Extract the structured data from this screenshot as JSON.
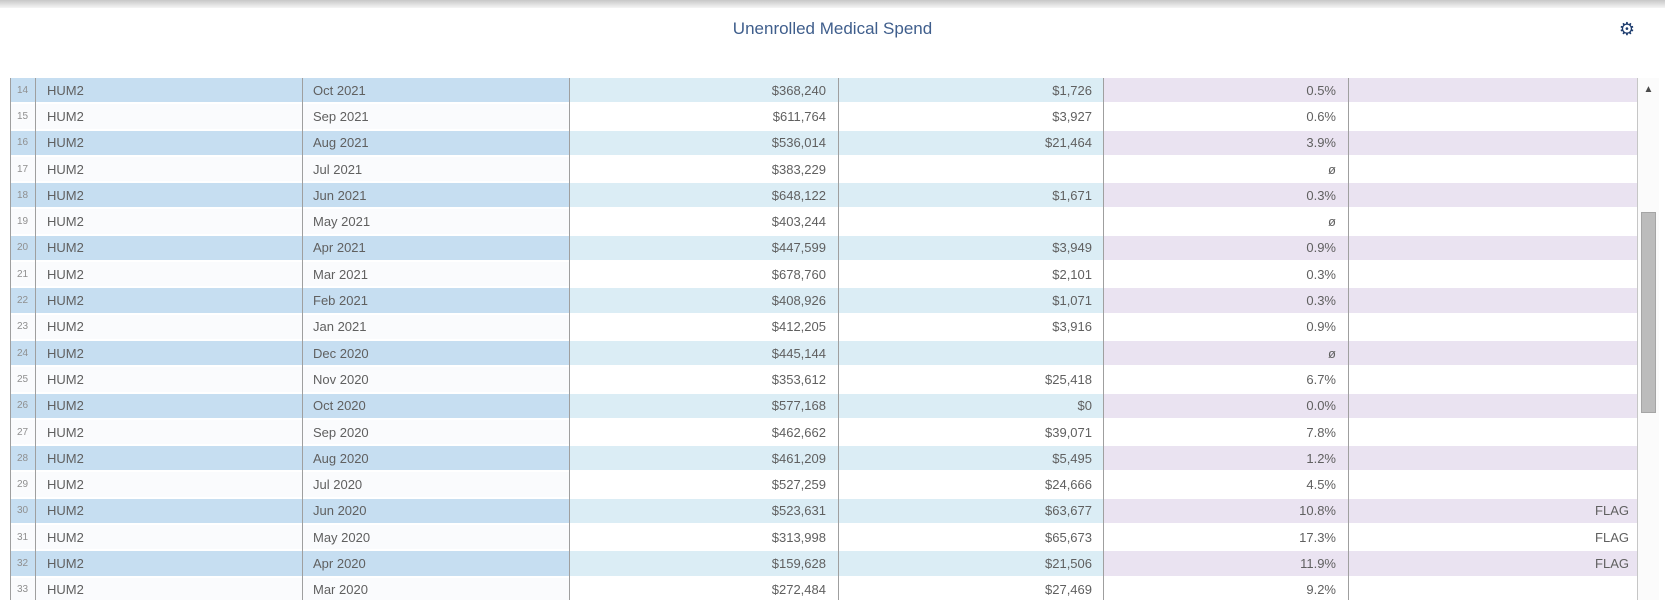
{
  "header": {
    "title": "Unenrolled Medical Spend",
    "gear_glyph": "⚙"
  },
  "scrollbar": {
    "up_arrow_glyph": "▲"
  },
  "colors": {
    "even_row_blue": "#c6def1",
    "even_row_cyan": "#dbedf5",
    "even_row_lavender": "#eae3f1",
    "title_blue": "#3f5e8c",
    "gear_navy": "#1d3c6e"
  },
  "table": {
    "null_symbol": "ø",
    "first_visible_row_number": "14",
    "last_visible_row_number": "33",
    "columns": [
      "row_number",
      "client",
      "month",
      "medical_spend",
      "unenrolled_spend",
      "percent",
      "flag"
    ],
    "rows": [
      {
        "n": "14",
        "client": "HUM2",
        "month": "Oct 2021",
        "spend": "$368,240",
        "unenrolled": "$1,726",
        "pct": "0.5%",
        "flag": ""
      },
      {
        "n": "15",
        "client": "HUM2",
        "month": "Sep 2021",
        "spend": "$611,764",
        "unenrolled": "$3,927",
        "pct": "0.6%",
        "flag": ""
      },
      {
        "n": "16",
        "client": "HUM2",
        "month": "Aug 2021",
        "spend": "$536,014",
        "unenrolled": "$21,464",
        "pct": "3.9%",
        "flag": ""
      },
      {
        "n": "17",
        "client": "HUM2",
        "month": "Jul 2021",
        "spend": "$383,229",
        "unenrolled": "",
        "pct": "ø",
        "flag": ""
      },
      {
        "n": "18",
        "client": "HUM2",
        "month": "Jun 2021",
        "spend": "$648,122",
        "unenrolled": "$1,671",
        "pct": "0.3%",
        "flag": ""
      },
      {
        "n": "19",
        "client": "HUM2",
        "month": "May 2021",
        "spend": "$403,244",
        "unenrolled": "",
        "pct": "ø",
        "flag": ""
      },
      {
        "n": "20",
        "client": "HUM2",
        "month": "Apr 2021",
        "spend": "$447,599",
        "unenrolled": "$3,949",
        "pct": "0.9%",
        "flag": ""
      },
      {
        "n": "21",
        "client": "HUM2",
        "month": "Mar 2021",
        "spend": "$678,760",
        "unenrolled": "$2,101",
        "pct": "0.3%",
        "flag": ""
      },
      {
        "n": "22",
        "client": "HUM2",
        "month": "Feb 2021",
        "spend": "$408,926",
        "unenrolled": "$1,071",
        "pct": "0.3%",
        "flag": ""
      },
      {
        "n": "23",
        "client": "HUM2",
        "month": "Jan 2021",
        "spend": "$412,205",
        "unenrolled": "$3,916",
        "pct": "0.9%",
        "flag": ""
      },
      {
        "n": "24",
        "client": "HUM2",
        "month": "Dec 2020",
        "spend": "$445,144",
        "unenrolled": "",
        "pct": "ø",
        "flag": ""
      },
      {
        "n": "25",
        "client": "HUM2",
        "month": "Nov 2020",
        "spend": "$353,612",
        "unenrolled": "$25,418",
        "pct": "6.7%",
        "flag": ""
      },
      {
        "n": "26",
        "client": "HUM2",
        "month": "Oct 2020",
        "spend": "$577,168",
        "unenrolled": "$0",
        "pct": "0.0%",
        "flag": ""
      },
      {
        "n": "27",
        "client": "HUM2",
        "month": "Sep 2020",
        "spend": "$462,662",
        "unenrolled": "$39,071",
        "pct": "7.8%",
        "flag": ""
      },
      {
        "n": "28",
        "client": "HUM2",
        "month": "Aug 2020",
        "spend": "$461,209",
        "unenrolled": "$5,495",
        "pct": "1.2%",
        "flag": ""
      },
      {
        "n": "29",
        "client": "HUM2",
        "month": "Jul 2020",
        "spend": "$527,259",
        "unenrolled": "$24,666",
        "pct": "4.5%",
        "flag": ""
      },
      {
        "n": "30",
        "client": "HUM2",
        "month": "Jun 2020",
        "spend": "$523,631",
        "unenrolled": "$63,677",
        "pct": "10.8%",
        "flag": "FLAG"
      },
      {
        "n": "31",
        "client": "HUM2",
        "month": "May 2020",
        "spend": "$313,998",
        "unenrolled": "$65,673",
        "pct": "17.3%",
        "flag": "FLAG"
      },
      {
        "n": "32",
        "client": "HUM2",
        "month": "Apr 2020",
        "spend": "$159,628",
        "unenrolled": "$21,506",
        "pct": "11.9%",
        "flag": "FLAG"
      },
      {
        "n": "33",
        "client": "HUM2",
        "month": "Mar 2020",
        "spend": "$272,484",
        "unenrolled": "$27,469",
        "pct": "9.2%",
        "flag": ""
      }
    ]
  }
}
